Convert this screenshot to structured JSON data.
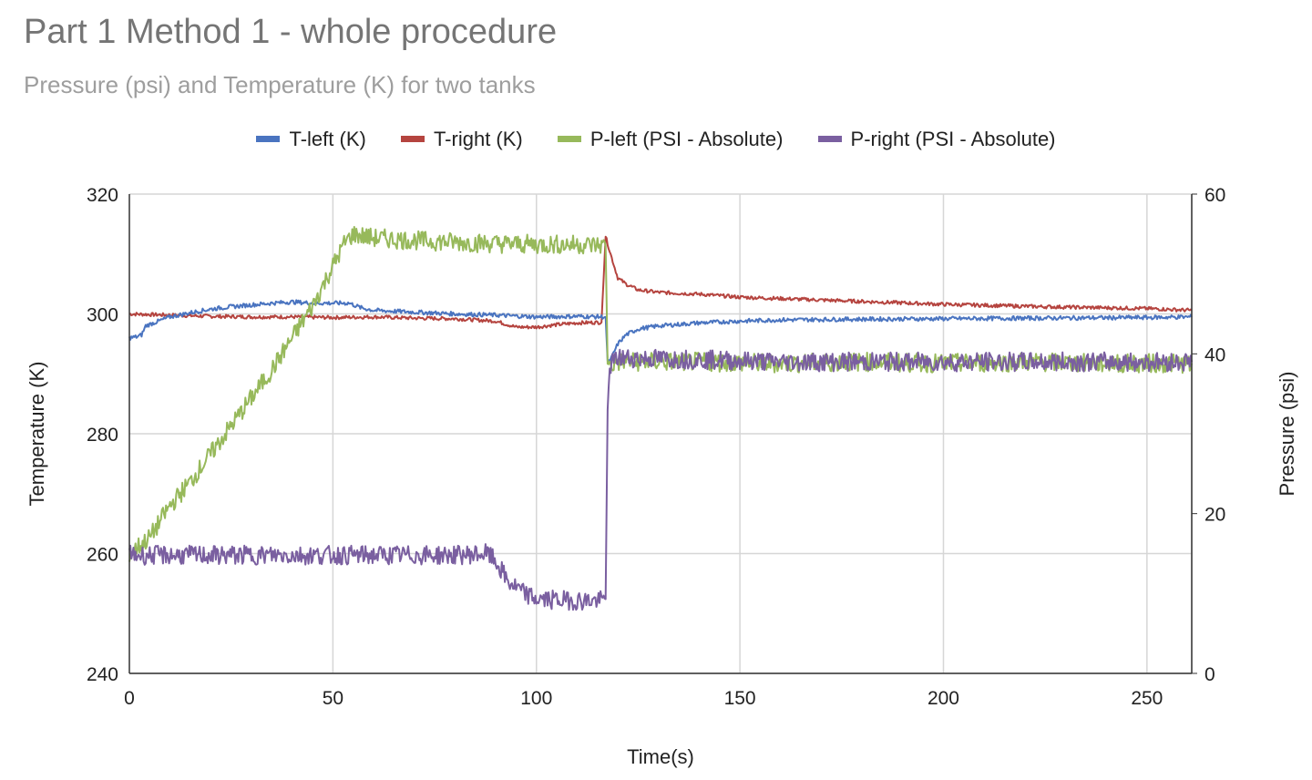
{
  "chart_data": {
    "type": "line",
    "title": "Part 1 Method 1 - whole procedure",
    "subtitle": "Pressure (psi) and Temperature (K) for two tanks",
    "xlabel": "Time(s)",
    "ylabel_left": "Temperature (K)",
    "ylabel_right": "Pressure (psi)",
    "xlim": [
      0,
      261
    ],
    "ylim_left": [
      240,
      320
    ],
    "ylim_right": [
      0,
      60
    ],
    "x_ticks": [
      "0",
      "50",
      "100",
      "150",
      "200",
      "250"
    ],
    "y_ticks_left": [
      "240",
      "260",
      "280",
      "300",
      "320"
    ],
    "y_ticks_right": [
      "0",
      "20",
      "40",
      "60"
    ],
    "legend_position": "top",
    "grid": true,
    "series": [
      {
        "name": "T-left (K)",
        "axis": "left",
        "color": "#4a74c0",
        "points": [
          [
            0,
            296
          ],
          [
            2,
            296.2
          ],
          [
            3,
            296.5
          ],
          [
            4,
            298
          ],
          [
            6,
            298.5
          ],
          [
            10,
            299.5
          ],
          [
            15,
            300.2
          ],
          [
            20,
            300.8
          ],
          [
            25,
            301.2
          ],
          [
            30,
            301.5
          ],
          [
            35,
            301.8
          ],
          [
            40,
            302
          ],
          [
            45,
            301.8
          ],
          [
            50,
            301.8
          ],
          [
            54,
            301.8
          ],
          [
            57,
            301
          ],
          [
            60,
            300.6
          ],
          [
            70,
            300.3
          ],
          [
            80,
            300
          ],
          [
            90,
            299.8
          ],
          [
            100,
            299.5
          ],
          [
            110,
            299.6
          ],
          [
            117,
            299.5
          ],
          [
            117.5,
            292
          ],
          [
            118,
            292
          ],
          [
            120,
            295
          ],
          [
            122,
            296.5
          ],
          [
            125,
            297.5
          ],
          [
            130,
            298
          ],
          [
            140,
            298.5
          ],
          [
            150,
            298.8
          ],
          [
            160,
            299
          ],
          [
            175,
            299.1
          ],
          [
            200,
            299.2
          ],
          [
            225,
            299.3
          ],
          [
            250,
            299.4
          ],
          [
            261,
            299.5
          ]
        ]
      },
      {
        "name": "T-right (K)",
        "axis": "left",
        "color": "#b5443f",
        "points": [
          [
            0,
            300
          ],
          [
            10,
            299.8
          ],
          [
            20,
            299.6
          ],
          [
            30,
            299.5
          ],
          [
            40,
            299.5
          ],
          [
            50,
            299.4
          ],
          [
            60,
            299.5
          ],
          [
            70,
            299.3
          ],
          [
            80,
            299.2
          ],
          [
            90,
            298.8
          ],
          [
            95,
            297.8
          ],
          [
            100,
            297.8
          ],
          [
            105,
            298.2
          ],
          [
            110,
            298.5
          ],
          [
            116,
            298.6
          ],
          [
            117,
            313
          ],
          [
            118,
            310.5
          ],
          [
            120,
            306
          ],
          [
            122,
            305
          ],
          [
            125,
            304
          ],
          [
            130,
            303.6
          ],
          [
            140,
            303.3
          ],
          [
            150,
            302.8
          ],
          [
            175,
            302.2
          ],
          [
            200,
            301.6
          ],
          [
            225,
            301.2
          ],
          [
            250,
            300.9
          ],
          [
            261,
            300.6
          ]
        ]
      },
      {
        "name": "P-left (PSI - Absolute)",
        "axis": "right",
        "color": "#97b95b",
        "points": [
          [
            0,
            15
          ],
          [
            5,
            17
          ],
          [
            10,
            21
          ],
          [
            15,
            24
          ],
          [
            20,
            27.5
          ],
          [
            25,
            31
          ],
          [
            30,
            34.5
          ],
          [
            35,
            38
          ],
          [
            40,
            42
          ],
          [
            45,
            46
          ],
          [
            50,
            51
          ],
          [
            53,
            54
          ],
          [
            55,
            55
          ],
          [
            60,
            54.5
          ],
          [
            70,
            54.2
          ],
          [
            80,
            54
          ],
          [
            90,
            53.8
          ],
          [
            100,
            53.7
          ],
          [
            110,
            53.7
          ],
          [
            116,
            53.6
          ],
          [
            117,
            53.5
          ],
          [
            117.5,
            39.5
          ],
          [
            118,
            38.5
          ],
          [
            120,
            39
          ],
          [
            140,
            39
          ],
          [
            160,
            38.8
          ],
          [
            180,
            39
          ],
          [
            200,
            38.8
          ],
          [
            220,
            39
          ],
          [
            240,
            38.8
          ],
          [
            261,
            38.8
          ]
        ]
      },
      {
        "name": "P-right (PSI - Absolute)",
        "axis": "right",
        "color": "#7a5fa0",
        "points": [
          [
            0,
            14.8
          ],
          [
            20,
            14.8
          ],
          [
            40,
            14.8
          ],
          [
            60,
            14.8
          ],
          [
            80,
            14.8
          ],
          [
            88,
            15
          ],
          [
            90,
            14
          ],
          [
            93,
            11.5
          ],
          [
            97,
            10
          ],
          [
            100,
            9.3
          ],
          [
            105,
            9.2
          ],
          [
            110,
            9.1
          ],
          [
            116,
            9.1
          ],
          [
            117,
            9.3
          ],
          [
            117.5,
            33
          ],
          [
            118,
            38.5
          ],
          [
            120,
            39.5
          ],
          [
            140,
            39.3
          ],
          [
            160,
            39
          ],
          [
            180,
            39
          ],
          [
            200,
            39
          ],
          [
            220,
            39
          ],
          [
            240,
            39
          ],
          [
            261,
            39
          ]
        ]
      }
    ]
  }
}
